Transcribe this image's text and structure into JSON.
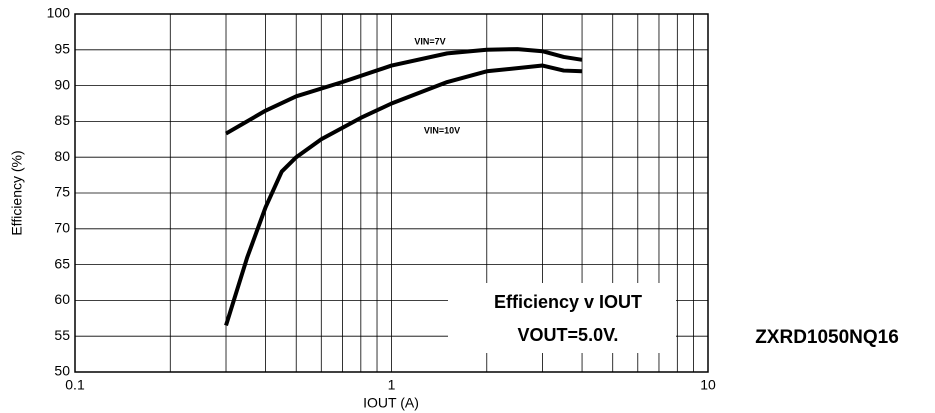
{
  "chart_data": {
    "type": "line",
    "title": "Efficiency v IOUT",
    "subtitle": "VOUT=5.0V.",
    "part_number": "ZXRD1050NQ16",
    "xlabel": "IOUT (A)",
    "ylabel": "Efficiency (%)",
    "xscale": "log",
    "xlim": [
      0.1,
      10
    ],
    "xticks": [
      0.1,
      1,
      10
    ],
    "xminorticks": [
      0.2,
      0.3,
      0.4,
      0.5,
      0.6,
      0.7,
      0.8,
      0.9,
      2,
      3,
      4,
      5,
      6,
      7,
      8,
      9
    ],
    "ylim": [
      50,
      100
    ],
    "yticks": [
      50,
      55,
      60,
      65,
      70,
      75,
      80,
      85,
      90,
      95,
      100
    ],
    "grid": true,
    "series": [
      {
        "name": "VIN=7V",
        "color": "#000000",
        "x": [
          0.3,
          0.4,
          0.5,
          0.7,
          1.0,
          1.5,
          2,
          2.5,
          3,
          3.5,
          4
        ],
        "values": [
          83.3,
          86.5,
          88.5,
          90.5,
          92.8,
          94.5,
          95,
          95.1,
          94.8,
          94,
          93.6
        ]
      },
      {
        "name": "VIN=10V",
        "color": "#000000",
        "x": [
          0.3,
          0.35,
          0.4,
          0.45,
          0.5,
          0.6,
          0.8,
          1.0,
          1.5,
          2,
          3,
          3.5,
          4
        ],
        "values": [
          56.5,
          66,
          73,
          78,
          80,
          82.5,
          85.5,
          87.5,
          90.5,
          92,
          92.8,
          92.1,
          92
        ]
      }
    ]
  }
}
